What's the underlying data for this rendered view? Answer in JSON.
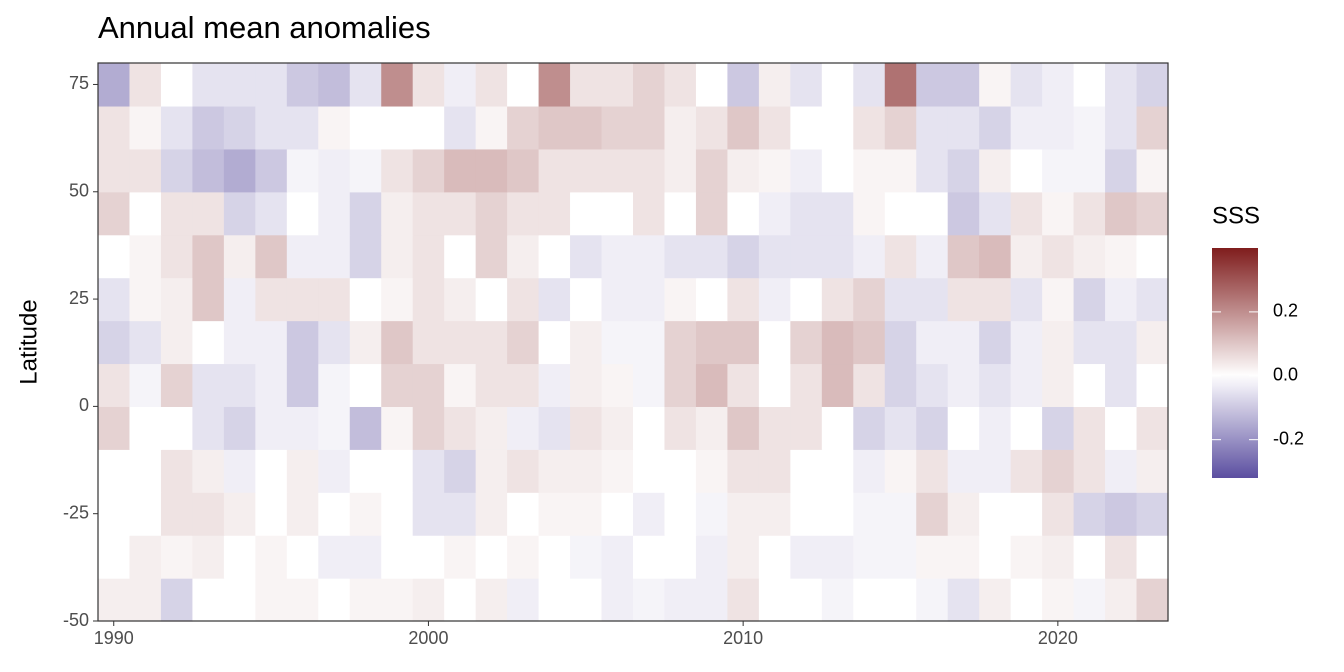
{
  "chart_data": {
    "type": "heatmap",
    "title": "Annual mean anomalies",
    "ylabel": "Latitude",
    "x": [
      1990,
      1991,
      1992,
      1993,
      1994,
      1995,
      1996,
      1997,
      1998,
      1999,
      2000,
      2001,
      2002,
      2003,
      2004,
      2005,
      2006,
      2007,
      2008,
      2009,
      2010,
      2011,
      2012,
      2013,
      2014,
      2015,
      2016,
      2017,
      2018,
      2019,
      2020,
      2021,
      2022,
      2023
    ],
    "ybins": [
      -50,
      -40,
      -30,
      -20,
      -10,
      0,
      10,
      20,
      30,
      40,
      50,
      60,
      70,
      80
    ],
    "z": [
      [
        0.03,
        0.03,
        -0.08,
        0.0,
        0.0,
        0.02,
        0.02,
        0.0,
        0.02,
        0.02,
        0.03,
        0.0,
        0.03,
        -0.03,
        0.0,
        0.0,
        -0.03,
        -0.02,
        -0.03,
        -0.03,
        0.05,
        0.0,
        0.0,
        -0.02,
        0.0,
        0.0,
        -0.02,
        -0.05,
        0.03,
        0.0,
        0.02,
        -0.02,
        0.03,
        0.08
      ],
      [
        0.0,
        0.03,
        0.02,
        0.03,
        0.0,
        0.02,
        0.0,
        -0.03,
        -0.03,
        0.0,
        0.0,
        0.02,
        0.0,
        0.02,
        0.0,
        -0.02,
        -0.03,
        0.0,
        0.0,
        -0.03,
        0.03,
        0.0,
        -0.03,
        -0.03,
        -0.02,
        -0.02,
        0.02,
        0.02,
        0.0,
        0.02,
        0.03,
        0.0,
        0.05,
        0.0
      ],
      [
        0.0,
        0.0,
        0.05,
        0.05,
        0.03,
        0.0,
        0.03,
        0.0,
        0.02,
        0.0,
        -0.05,
        -0.05,
        0.03,
        0.0,
        0.02,
        0.02,
        0.0,
        -0.03,
        0.0,
        -0.02,
        0.03,
        0.03,
        0.0,
        0.0,
        -0.02,
        -0.02,
        0.08,
        0.03,
        0.0,
        0.0,
        0.05,
        -0.08,
        -0.1,
        -0.08
      ],
      [
        0.0,
        0.0,
        0.05,
        0.03,
        -0.03,
        0.0,
        0.03,
        -0.03,
        0.0,
        0.0,
        -0.05,
        -0.08,
        0.03,
        0.05,
        0.03,
        0.03,
        0.02,
        0.0,
        0.0,
        0.02,
        0.05,
        0.05,
        0.0,
        0.0,
        -0.03,
        0.02,
        0.05,
        -0.03,
        -0.03,
        0.05,
        0.08,
        0.05,
        -0.03,
        0.03
      ],
      [
        0.08,
        0.0,
        0.0,
        -0.05,
        -0.08,
        -0.03,
        -0.03,
        -0.02,
        -0.12,
        0.02,
        0.08,
        0.05,
        0.03,
        -0.03,
        -0.05,
        0.05,
        0.03,
        0.0,
        0.05,
        0.03,
        0.1,
        0.05,
        0.05,
        0.0,
        -0.08,
        -0.05,
        -0.08,
        0.0,
        -0.03,
        0.0,
        -0.08,
        0.05,
        0.0,
        0.05
      ],
      [
        0.05,
        -0.02,
        0.08,
        -0.05,
        -0.05,
        -0.03,
        -0.1,
        -0.02,
        0.0,
        0.08,
        0.08,
        0.02,
        0.05,
        0.05,
        -0.03,
        0.03,
        0.02,
        -0.02,
        0.08,
        0.12,
        0.05,
        0.0,
        0.05,
        0.12,
        0.05,
        -0.08,
        -0.05,
        -0.03,
        -0.05,
        -0.03,
        0.03,
        0.0,
        -0.05,
        0.0
      ],
      [
        -0.08,
        -0.05,
        0.03,
        0.0,
        -0.03,
        -0.03,
        -0.1,
        -0.05,
        0.03,
        0.1,
        0.05,
        0.05,
        0.05,
        0.08,
        0.0,
        0.03,
        -0.02,
        -0.02,
        0.08,
        0.1,
        0.1,
        0.0,
        0.08,
        0.12,
        0.1,
        -0.08,
        -0.03,
        -0.03,
        -0.08,
        -0.03,
        0.03,
        -0.05,
        -0.05,
        0.03
      ],
      [
        -0.05,
        0.02,
        0.03,
        0.1,
        -0.03,
        0.05,
        0.05,
        0.05,
        0.0,
        0.02,
        0.05,
        0.03,
        0.0,
        0.05,
        -0.05,
        0.0,
        -0.03,
        -0.03,
        0.02,
        0.0,
        0.05,
        -0.03,
        0.0,
        0.05,
        0.08,
        -0.05,
        -0.05,
        0.05,
        0.05,
        -0.05,
        0.02,
        -0.08,
        -0.03,
        -0.05
      ],
      [
        0.0,
        0.02,
        0.05,
        0.1,
        0.03,
        0.1,
        -0.03,
        -0.03,
        -0.08,
        0.03,
        0.05,
        0.0,
        0.08,
        0.03,
        0.0,
        -0.05,
        -0.03,
        -0.03,
        -0.05,
        -0.05,
        -0.08,
        -0.05,
        -0.05,
        -0.05,
        -0.03,
        0.05,
        -0.03,
        0.1,
        0.12,
        0.03,
        0.05,
        0.03,
        0.02,
        0.0
      ],
      [
        0.08,
        0.0,
        0.05,
        0.05,
        -0.08,
        -0.05,
        0.0,
        -0.03,
        -0.08,
        0.03,
        0.05,
        0.05,
        0.08,
        0.05,
        0.05,
        0.0,
        0.0,
        0.05,
        0.0,
        0.08,
        0.0,
        -0.03,
        -0.05,
        -0.05,
        0.02,
        0.0,
        0.0,
        -0.1,
        -0.05,
        0.05,
        0.02,
        0.05,
        0.1,
        0.08
      ],
      [
        0.05,
        0.05,
        -0.08,
        -0.12,
        -0.15,
        -0.1,
        -0.02,
        -0.03,
        -0.02,
        0.05,
        0.08,
        0.12,
        0.12,
        0.1,
        0.05,
        0.05,
        0.05,
        0.05,
        0.03,
        0.08,
        0.03,
        0.02,
        -0.03,
        0.0,
        0.02,
        0.02,
        -0.05,
        -0.08,
        0.03,
        0.0,
        -0.02,
        -0.02,
        -0.08,
        0.02
      ],
      [
        0.05,
        0.02,
        -0.05,
        -0.1,
        -0.08,
        -0.05,
        -0.05,
        0.02,
        0.0,
        0.0,
        0.0,
        -0.05,
        0.02,
        0.08,
        0.1,
        0.1,
        0.08,
        0.08,
        0.03,
        0.05,
        0.1,
        0.05,
        0.0,
        0.0,
        0.05,
        0.08,
        -0.05,
        -0.05,
        -0.08,
        -0.03,
        -0.03,
        -0.02,
        -0.05,
        0.08
      ],
      [
        -0.15,
        0.05,
        0.0,
        -0.05,
        -0.05,
        -0.05,
        -0.1,
        -0.12,
        -0.05,
        0.2,
        0.05,
        -0.03,
        0.05,
        0.0,
        0.2,
        0.05,
        0.05,
        0.08,
        0.05,
        0.0,
        -0.1,
        0.03,
        -0.05,
        0.0,
        -0.05,
        0.25,
        -0.1,
        -0.1,
        0.02,
        -0.05,
        -0.03,
        0.0,
        -0.05,
        -0.08
      ]
    ],
    "xlim": [
      1989.5,
      2023.5
    ],
    "xticks": [
      1990,
      2000,
      2010,
      2020
    ],
    "ylim": [
      -50,
      80
    ],
    "yticks": [
      -50,
      -25,
      0,
      25,
      50,
      75
    ],
    "colorbar": {
      "title": "SSS",
      "lim": [
        -0.32,
        0.4
      ],
      "ticks": [
        -0.2,
        {
          "value": 0,
          "label": "0.0"
        },
        0.2
      ],
      "low": "#5b4ea0",
      "mid": "#ffffff",
      "high": "#7f1d1d"
    }
  }
}
